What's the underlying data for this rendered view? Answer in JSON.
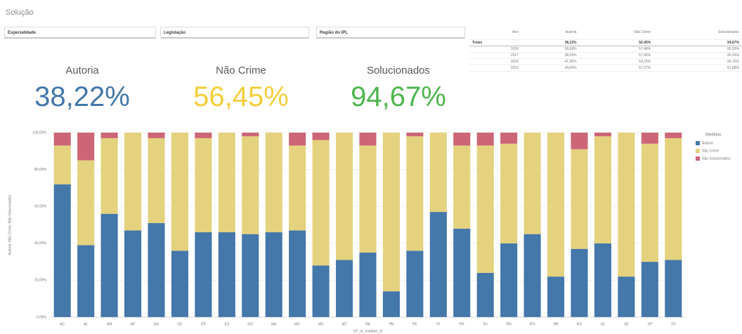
{
  "title": "Solução",
  "filters": [
    "Especialidade",
    "Legislação",
    "Região do IPL"
  ],
  "table": {
    "headers": [
      "Ano",
      "Autoria",
      "Não Crime",
      "Solucionados"
    ],
    "totals": [
      "Totais",
      "38,22%",
      "56,45%",
      "94,67%"
    ],
    "rows": [
      [
        "2018",
        "38,08%",
        "57,48%",
        "95,55%"
      ],
      [
        "2017",
        "38,59%",
        "57,46%",
        "96,05%"
      ],
      [
        "2016",
        "41,95%",
        "54,15%",
        "96,10%"
      ],
      [
        "2015",
        "34,60%",
        "57,27%",
        "91,88%"
      ]
    ]
  },
  "kpis": [
    {
      "label": "Autoria",
      "value": "38,22%",
      "color": "#4477aa"
    },
    {
      "label": "Não Crime",
      "value": "56,45%",
      "color": "#f2cf3a"
    },
    {
      "label": "Solucionados",
      "value": "94,67%",
      "color": "#4fb54f"
    }
  ],
  "chart_data": {
    "type": "stacked_bar",
    "y_label": "Autoria, Não Crime, Não Solucionados",
    "x_label": "UF_of_unidade_of",
    "legend_title": "Medidas",
    "legend": "right",
    "categories": [
      "AC",
      "AL",
      "AM",
      "AP",
      "BA",
      "CE",
      "DF",
      "ES",
      "GO",
      "MA",
      "MG",
      "MS",
      "MT",
      "PA",
      "PB",
      "PE",
      "PI",
      "PR",
      "RJ",
      "RN",
      "RO",
      "RR",
      "RS",
      "SC",
      "SE",
      "SP",
      "TO"
    ],
    "series": [
      {
        "name": "Autoria",
        "color": "#4477aa",
        "values": [
          72,
          39,
          56,
          47,
          51,
          36,
          46,
          46,
          45,
          46,
          47,
          28,
          31,
          35,
          14,
          36,
          57,
          48,
          24,
          40,
          45,
          22,
          37,
          40,
          22,
          30,
          31
        ]
      },
      {
        "name": "Não Crime",
        "color": "#e5d27e",
        "values": [
          21,
          46,
          41,
          53,
          46,
          64,
          51,
          54,
          53,
          54,
          46,
          68,
          69,
          58,
          86,
          62,
          43,
          45,
          69,
          54,
          55,
          78,
          54,
          58,
          78,
          64,
          66
        ]
      },
      {
        "name": "Não Solucionados",
        "color": "#cc6677",
        "values": [
          7,
          15,
          3,
          0,
          3,
          0,
          3,
          0,
          2,
          0,
          7,
          4,
          0,
          7,
          0,
          2,
          0,
          7,
          7,
          6,
          0,
          0,
          9,
          2,
          0,
          6,
          3
        ]
      }
    ],
    "ylim": [
      0,
      100
    ],
    "yticks": [
      {
        "value": 0,
        "label": "0,00%"
      },
      {
        "value": 20,
        "label": "20,00%"
      },
      {
        "value": 40,
        "label": "40,00%"
      },
      {
        "value": 60,
        "label": "60,00%"
      },
      {
        "value": 80,
        "label": "80,00%"
      },
      {
        "value": 100,
        "label": "100,00%"
      }
    ],
    "grid": true
  }
}
